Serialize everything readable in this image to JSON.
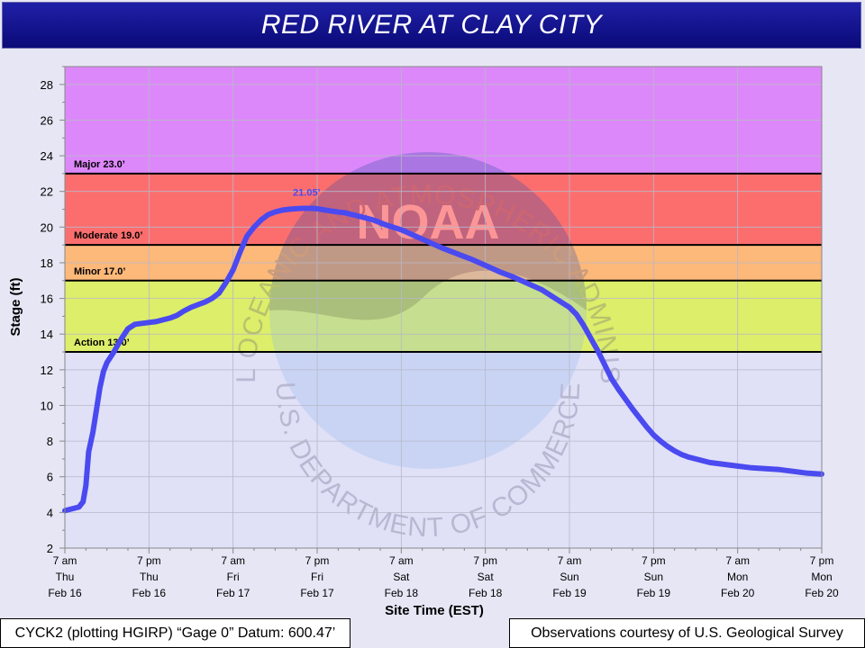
{
  "header": {
    "title": "RED RIVER AT CLAY CITY"
  },
  "footer": {
    "datum": "CYCK2 (plotting HGIRP) “Gage 0” Datum: 600.47’",
    "credit": "Observations courtesy of U.S. Geological Survey"
  },
  "watermark": {
    "text_top": "NATIONAL OCEANIC AND ATMOSPHERIC ADMINISTRATION",
    "text_bottom": "U.S. DEPARTMENT OF COMMERCE",
    "logo_text": "NOAA"
  },
  "chart_data": {
    "type": "line",
    "xlabel": "Site Time (EST)",
    "ylabel": "Stage (ft)",
    "ylim": [
      2,
      29
    ],
    "yticks": [
      2,
      4,
      6,
      8,
      10,
      12,
      14,
      16,
      18,
      20,
      22,
      24,
      26,
      28
    ],
    "xlim_hours": [
      0,
      108
    ],
    "xticks": [
      {
        "hour": 0,
        "lines": [
          "7 am",
          "Thu",
          "Feb 16"
        ]
      },
      {
        "hour": 12,
        "lines": [
          "7 pm",
          "Thu",
          "Feb 16"
        ]
      },
      {
        "hour": 24,
        "lines": [
          "7 am",
          "Fri",
          "Feb 17"
        ]
      },
      {
        "hour": 36,
        "lines": [
          "7 pm",
          "Fri",
          "Feb 17"
        ]
      },
      {
        "hour": 48,
        "lines": [
          "7 am",
          "Sat",
          "Feb 18"
        ]
      },
      {
        "hour": 60,
        "lines": [
          "7 pm",
          "Sat",
          "Feb 18"
        ]
      },
      {
        "hour": 72,
        "lines": [
          "7 am",
          "Sun",
          "Feb 19"
        ]
      },
      {
        "hour": 84,
        "lines": [
          "7 pm",
          "Sun",
          "Feb 19"
        ]
      },
      {
        "hour": 96,
        "lines": [
          "7 am",
          "Mon",
          "Feb 20"
        ]
      },
      {
        "hour": 108,
        "lines": [
          "7 pm",
          "Mon",
          "Feb 20"
        ]
      }
    ],
    "grid": true,
    "flood_categories": [
      {
        "name": "Major",
        "label": "Major 23.0’",
        "level": 23.0,
        "color": "#dd88fa"
      },
      {
        "name": "Moderate",
        "label": "Moderate 19.0’",
        "level": 19.0,
        "color": "#fc6e6e"
      },
      {
        "name": "Minor",
        "label": "Minor 17.0’",
        "level": 17.0,
        "color": "#fcb97a"
      },
      {
        "name": "Action",
        "label": "Action 13.0’",
        "level": 13.0,
        "color": "#dcee6a"
      }
    ],
    "series": [
      {
        "color": "#4a4af0",
        "points": [
          [
            0,
            4.1
          ],
          [
            1,
            4.2
          ],
          [
            2,
            4.3
          ],
          [
            2.6,
            4.6
          ],
          [
            3,
            5.5
          ],
          [
            3.4,
            7.4
          ],
          [
            4,
            8.5
          ],
          [
            4.6,
            10.0
          ],
          [
            5,
            11.0
          ],
          [
            5.5,
            11.9
          ],
          [
            6,
            12.4
          ],
          [
            7,
            13.0
          ],
          [
            8,
            13.7
          ],
          [
            9,
            14.3
          ],
          [
            10,
            14.55
          ],
          [
            11,
            14.6
          ],
          [
            12,
            14.65
          ],
          [
            13,
            14.7
          ],
          [
            14,
            14.8
          ],
          [
            15,
            14.9
          ],
          [
            16,
            15.05
          ],
          [
            17,
            15.3
          ],
          [
            18,
            15.5
          ],
          [
            19,
            15.65
          ],
          [
            20,
            15.8
          ],
          [
            21,
            16.0
          ],
          [
            22,
            16.3
          ],
          [
            23,
            16.9
          ],
          [
            24,
            17.6
          ],
          [
            25,
            18.6
          ],
          [
            26,
            19.5
          ],
          [
            27,
            20.0
          ],
          [
            28,
            20.4
          ],
          [
            29,
            20.7
          ],
          [
            30,
            20.85
          ],
          [
            31,
            20.95
          ],
          [
            32,
            21.0
          ],
          [
            33,
            21.03
          ],
          [
            34,
            21.05
          ],
          [
            35,
            21.05
          ],
          [
            36,
            21.03
          ],
          [
            38,
            20.9
          ],
          [
            40,
            20.8
          ],
          [
            42,
            20.6
          ],
          [
            44,
            20.4
          ],
          [
            46,
            20.1
          ],
          [
            48,
            19.85
          ],
          [
            50,
            19.5
          ],
          [
            52,
            19.15
          ],
          [
            54,
            18.8
          ],
          [
            56,
            18.5
          ],
          [
            58,
            18.2
          ],
          [
            60,
            17.85
          ],
          [
            62,
            17.5
          ],
          [
            64,
            17.2
          ],
          [
            66,
            16.85
          ],
          [
            68,
            16.5
          ],
          [
            70,
            16.0
          ],
          [
            72,
            15.5
          ],
          [
            73,
            15.1
          ],
          [
            74,
            14.5
          ],
          [
            75,
            13.8
          ],
          [
            76,
            13.1
          ],
          [
            77,
            12.3
          ],
          [
            78,
            11.5
          ],
          [
            79,
            10.9
          ],
          [
            80,
            10.35
          ],
          [
            81,
            9.8
          ],
          [
            82,
            9.3
          ],
          [
            83,
            8.8
          ],
          [
            84,
            8.35
          ],
          [
            85,
            8.0
          ],
          [
            86,
            7.7
          ],
          [
            87,
            7.45
          ],
          [
            88,
            7.25
          ],
          [
            89,
            7.1
          ],
          [
            90,
            7.0
          ],
          [
            92,
            6.8
          ],
          [
            94,
            6.7
          ],
          [
            96,
            6.6
          ],
          [
            98,
            6.5
          ],
          [
            100,
            6.45
          ],
          [
            102,
            6.4
          ],
          [
            104,
            6.3
          ],
          [
            106,
            6.2
          ],
          [
            108,
            6.15
          ]
        ]
      }
    ],
    "annotations": [
      {
        "text": "21.05’",
        "hour": 34.5,
        "value": 21.05,
        "color": "#4a4af0"
      }
    ]
  }
}
